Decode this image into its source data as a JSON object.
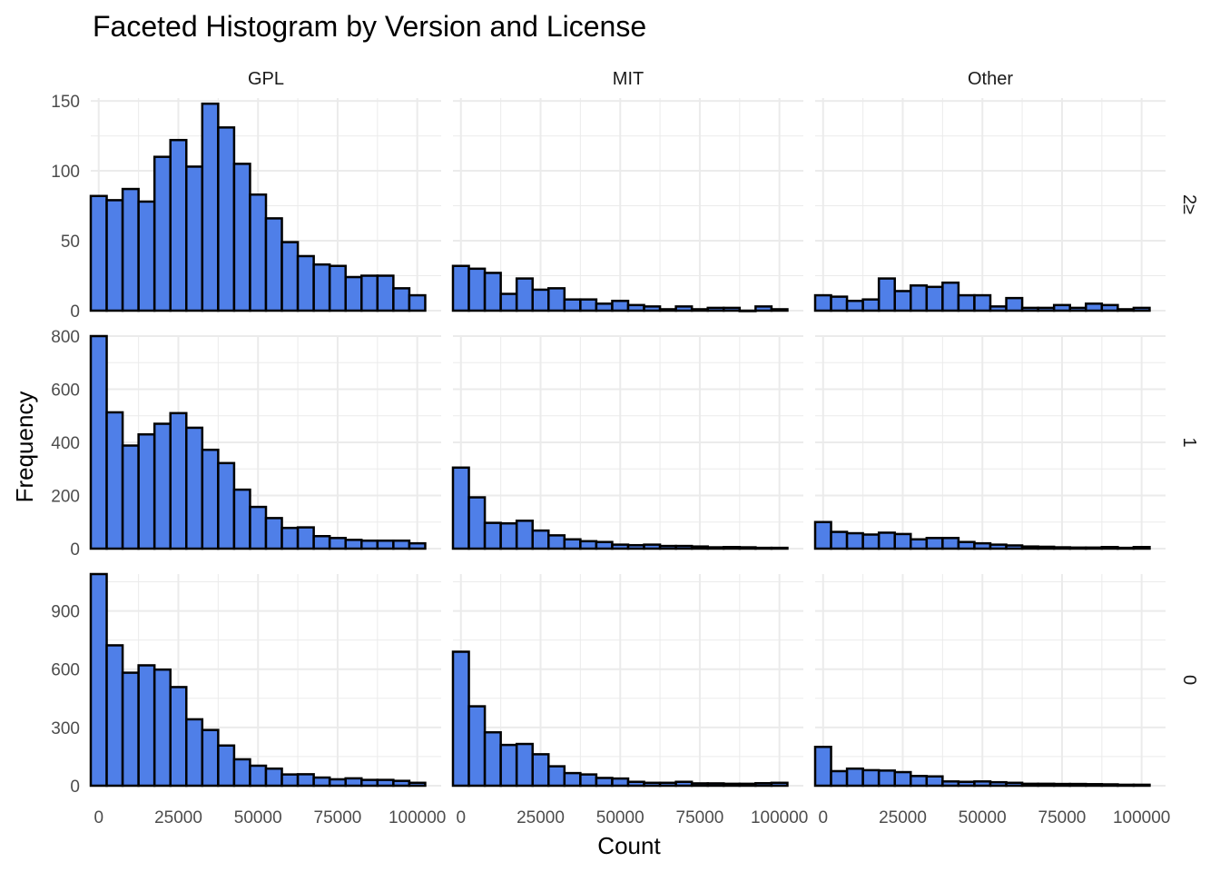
{
  "chart_data": {
    "type": "bar",
    "title": "Faceted Histogram by Version and License",
    "xlabel": "Count",
    "ylabel": "Frequency",
    "bar_color": "#4F7FE8",
    "bar_outline": "#000000",
    "grid": true,
    "bin_width": 5000,
    "bins_start": 0,
    "xlim": [
      -2500,
      107500
    ],
    "x_ticks": [
      0,
      25000,
      50000,
      75000,
      100000
    ],
    "columns": [
      "GPL",
      "MIT",
      "Other"
    ],
    "rows": [
      {
        "label": "2≥",
        "ylim": [
          0,
          152
        ],
        "y_ticks": [
          0,
          50,
          100,
          150
        ],
        "panels": [
          {
            "facet": "GPL",
            "values": [
              82,
              79,
              87,
              78,
              110,
              122,
              103,
              148,
              131,
              105,
              83,
              66,
              49,
              39,
              33,
              32,
              24,
              25,
              25,
              16,
              11
            ]
          },
          {
            "facet": "MIT",
            "values": [
              32,
              30,
              27,
              12,
              23,
              15,
              16,
              8,
              8,
              5,
              7,
              4,
              3,
              1,
              3,
              1,
              2,
              2,
              0,
              3,
              1
            ]
          },
          {
            "facet": "Other",
            "values": [
              11,
              10,
              7,
              8,
              23,
              14,
              18,
              17,
              20,
              11,
              11,
              3,
              9,
              2,
              2,
              4,
              2,
              5,
              4,
              1,
              2
            ]
          }
        ]
      },
      {
        "label": "1",
        "ylim": [
          0,
          800
        ],
        "y_ticks": [
          0,
          200,
          400,
          600,
          800
        ],
        "panels": [
          {
            "facet": "GPL",
            "values": [
              800,
              513,
              388,
              430,
              470,
              510,
              455,
              372,
              322,
              222,
              157,
              115,
              78,
              80,
              47,
              40,
              33,
              30,
              30,
              30,
              20
            ]
          },
          {
            "facet": "MIT",
            "values": [
              305,
              193,
              97,
              95,
              105,
              68,
              50,
              35,
              28,
              25,
              15,
              13,
              15,
              10,
              10,
              8,
              5,
              6,
              5,
              3,
              3
            ]
          },
          {
            "facet": "Other",
            "values": [
              100,
              63,
              58,
              53,
              60,
              55,
              35,
              40,
              40,
              25,
              20,
              15,
              12,
              8,
              7,
              5,
              4,
              4,
              6,
              3,
              6
            ]
          }
        ]
      },
      {
        "label": "0",
        "ylim": [
          0,
          1090
        ],
        "y_ticks": [
          0,
          300,
          600,
          900
        ],
        "panels": [
          {
            "facet": "GPL",
            "values": [
              1090,
              723,
              582,
              620,
              598,
              508,
              342,
              287,
              207,
              136,
              103,
              88,
              58,
              59,
              42,
              33,
              38,
              30,
              30,
              25,
              15
            ]
          },
          {
            "facet": "MIT",
            "values": [
              690,
              409,
              275,
              210,
              215,
              162,
              100,
              65,
              58,
              40,
              37,
              20,
              15,
              15,
              20,
              12,
              12,
              10,
              10,
              13,
              15
            ]
          },
          {
            "facet": "Other",
            "values": [
              200,
              75,
              88,
              80,
              78,
              70,
              50,
              48,
              22,
              20,
              22,
              18,
              15,
              10,
              10,
              9,
              9,
              8,
              7,
              5,
              5
            ]
          }
        ]
      }
    ]
  }
}
